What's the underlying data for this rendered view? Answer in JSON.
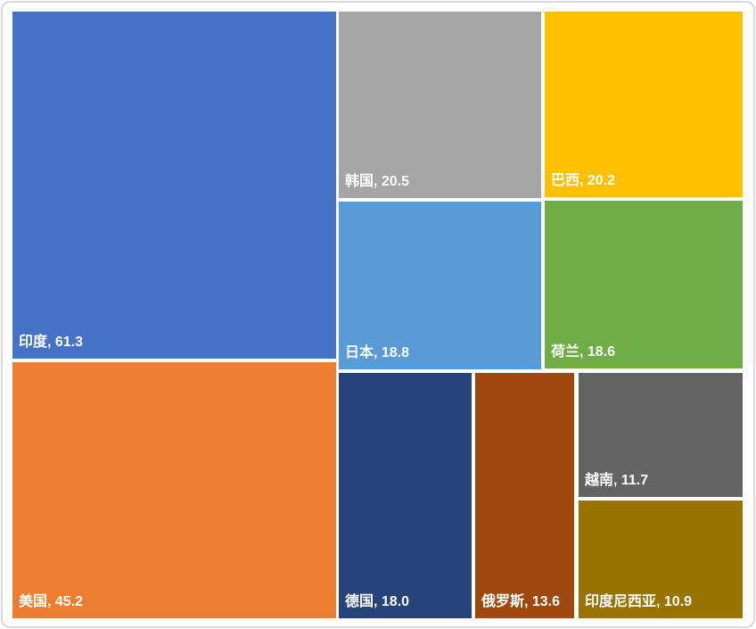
{
  "chart_data": {
    "type": "treemap",
    "title": "",
    "legend": "none",
    "label_format": "name, value",
    "label_position": "bottom-left",
    "label_color": "#FFFFFF",
    "frame_border_color": "#D9D9D9",
    "background": "#FFFFFF",
    "items": [
      {
        "name": "印度",
        "value": 61.3,
        "label": "印度, 61.3",
        "color": "#4472C4"
      },
      {
        "name": "美国",
        "value": 45.2,
        "label": "美国, 45.2",
        "color": "#ED7D31"
      },
      {
        "name": "韩国",
        "value": 20.5,
        "label": "韩国, 20.5",
        "color": "#A5A5A5"
      },
      {
        "name": "巴西",
        "value": 20.2,
        "label": "巴西, 20.2",
        "color": "#FFC000"
      },
      {
        "name": "日本",
        "value": 18.8,
        "label": "日本, 18.8",
        "color": "#5B9BD5"
      },
      {
        "name": "荷兰",
        "value": 18.6,
        "label": "荷兰, 18.6",
        "color": "#70AD47"
      },
      {
        "name": "德国",
        "value": 18.0,
        "label": "德国, 18.0",
        "color": "#264478"
      },
      {
        "name": "俄罗斯",
        "value": 13.6,
        "label": "俄罗斯, 13.6",
        "color": "#9E480E"
      },
      {
        "name": "越南",
        "value": 11.7,
        "label": "越南, 11.7",
        "color": "#636363"
      },
      {
        "name": "印度尼西亚",
        "value": 10.9,
        "label": "印度尼西亚, 10.9",
        "color": "#997300"
      }
    ]
  }
}
